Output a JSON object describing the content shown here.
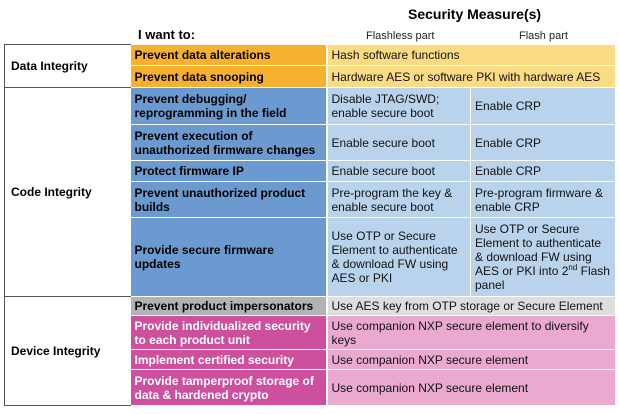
{
  "title": "Security Measure(s)",
  "header": {
    "i_want_to": "I want to:",
    "flashless": "Flashless part",
    "flash": "Flash part"
  },
  "sections": [
    {
      "category": "Data Integrity",
      "rows": [
        {
          "action": "Prevent data alterations",
          "measure": "Hash software functions"
        },
        {
          "action": "Prevent data snooping",
          "measure": "Hardware AES or software PKI with hardware AES"
        }
      ]
    },
    {
      "category": "Code Integrity",
      "rows": [
        {
          "action": "Prevent debugging/ reprogramming in the field",
          "flashless": "Disable JTAG/SWD; enable secure boot",
          "flash": "Enable CRP"
        },
        {
          "action": "Prevent execution of unauthorized firmware changes",
          "flashless": "Enable secure boot",
          "flash": "Enable CRP"
        },
        {
          "action": "Protect firmware IP",
          "flashless": "Enable secure boot",
          "flash": "Enable CRP"
        },
        {
          "action": "Prevent unauthorized product builds",
          "flashless": "Pre-program the key & enable secure boot",
          "flash": "Pre-program firmware & enable CRP"
        },
        {
          "action": "Provide secure firmware updates",
          "flashless": "Use OTP or Secure Element to authenticate & download FW using AES or PKI",
          "flash": "Use OTP or Secure Element to authenticate & download FW using AES or PKI into 2",
          "flash_sup": "nd",
          "flash_tail": " Flash panel"
        }
      ]
    },
    {
      "category": "Device Integrity",
      "rows": [
        {
          "action": "Prevent product impersonators",
          "measure": "Use AES key from OTP storage or Secure Element"
        },
        {
          "action": "Provide individualized security to each product unit",
          "measure": "Use companion NXP secure element to diversify keys"
        },
        {
          "action": "Implement certified security",
          "measure": "Use companion NXP secure element"
        },
        {
          "action": "Provide tamperproof storage of data & hardened crypto",
          "measure": "Use companion NXP secure element"
        }
      ]
    }
  ]
}
